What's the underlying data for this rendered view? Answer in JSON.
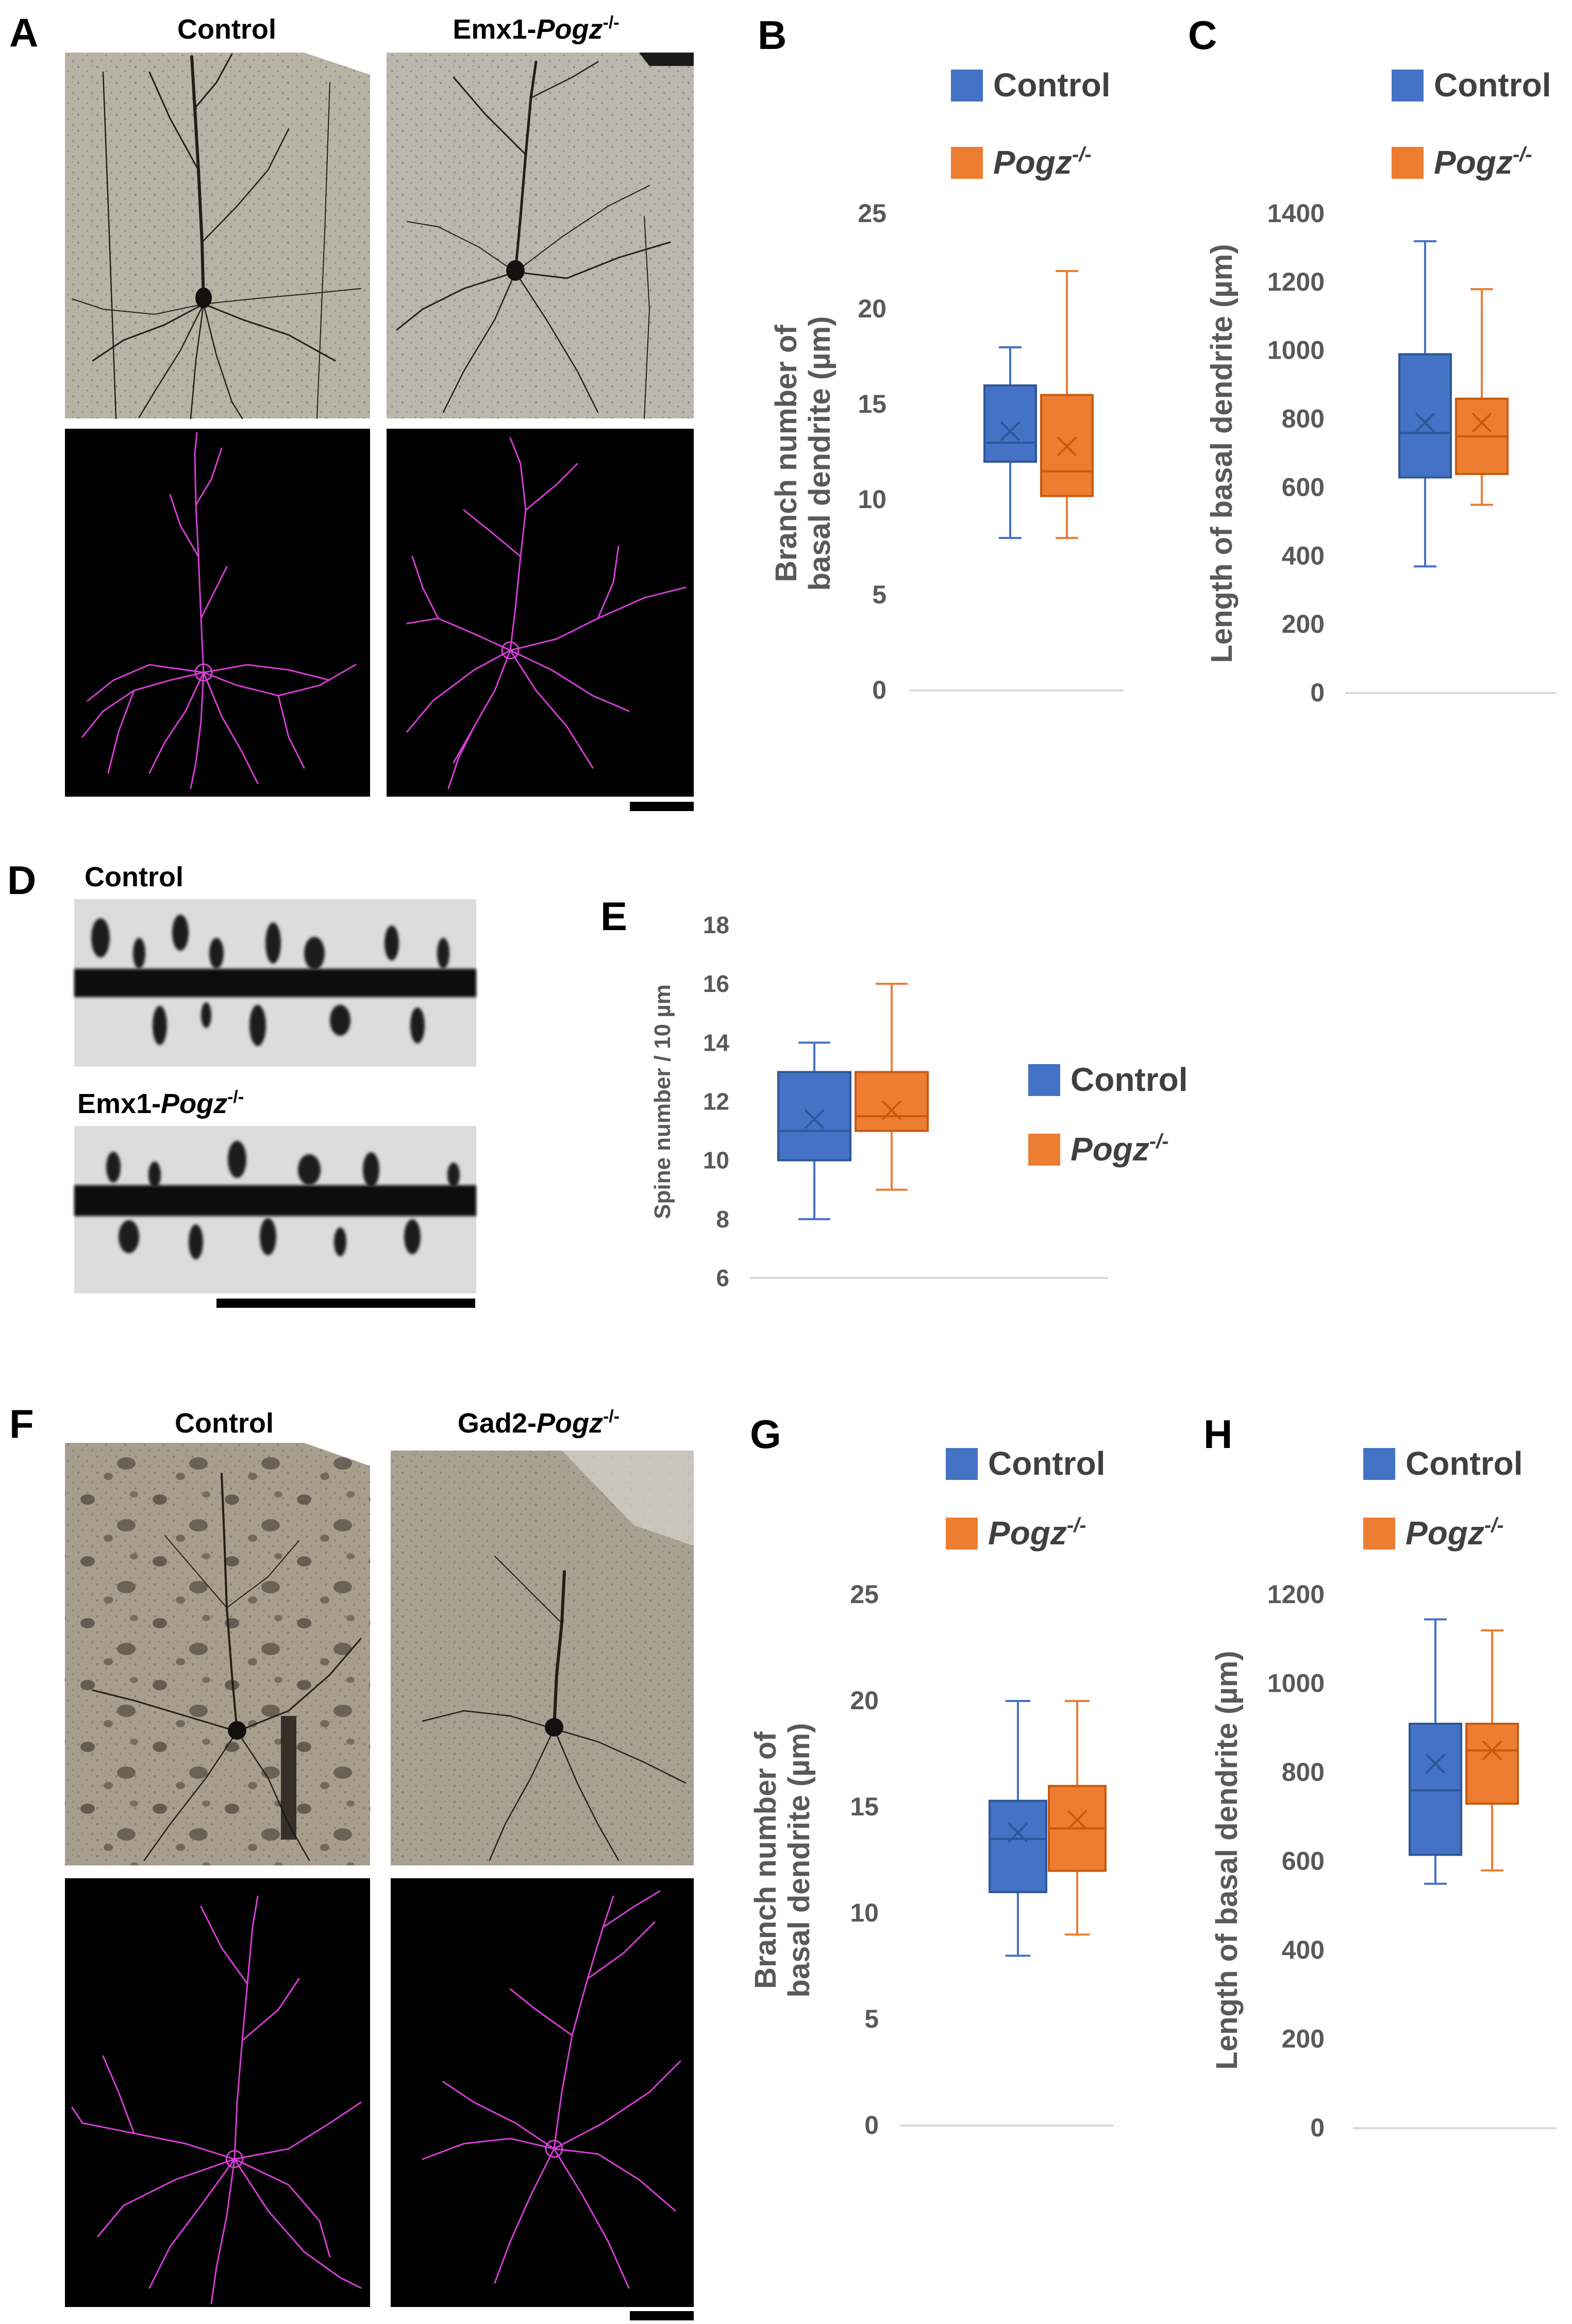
{
  "colors": {
    "control": "#4472C4",
    "control_dark": "#2F5597",
    "mutant": "#ED7D31",
    "mutant_dark": "#C55A11",
    "trace": "#D63ED6",
    "axis_text": "#595959",
    "axis_line": "#D9D9D9",
    "photo_bg": "#B8B2A6",
    "photo_bg_dark": "#A59C8C"
  },
  "panels": {
    "A": {
      "letter": "A",
      "left_label": "Control",
      "right_label_prefix": "Emx1-",
      "right_label_italic": "Pogz",
      "right_label_sup": "-/-"
    },
    "D": {
      "letter": "D",
      "top_label": "Control",
      "bottom_label_prefix": "Emx1-",
      "bottom_label_italic": "Pogz",
      "bottom_label_sup": "-/-"
    },
    "F": {
      "letter": "F",
      "left_label": "Control",
      "right_label_prefix": "Gad2-",
      "right_label_italic": "Pogz",
      "right_label_sup": "-/-"
    }
  },
  "legend": {
    "control": "Control",
    "mutant_italic": "Pogz",
    "mutant_sup": "-/-"
  },
  "chart_data": [
    {
      "id": "B",
      "type": "boxplot",
      "letter": "B",
      "ylabel_lines": [
        "Branch number of",
        "basal dendrite (µm)"
      ],
      "ylim": [
        0,
        25
      ],
      "yticks": [
        "0",
        "5",
        "10",
        "15",
        "20",
        "25"
      ],
      "legend_position": "top",
      "series": [
        {
          "name": "Control",
          "min": 8,
          "q1": 12,
          "median": 13,
          "q3": 16,
          "max": 18,
          "mean": 13.6
        },
        {
          "name": "Pogz-/-",
          "min": 8,
          "q1": 10.2,
          "median": 11.5,
          "q3": 15.5,
          "max": 22,
          "mean": 12.8
        }
      ]
    },
    {
      "id": "C",
      "type": "boxplot",
      "letter": "C",
      "ylabel_lines": [
        "Length of basal dendrite (µm)"
      ],
      "ylim": [
        0,
        1400
      ],
      "yticks": [
        "0",
        "200",
        "400",
        "600",
        "800",
        "1000",
        "1200",
        "1400"
      ],
      "legend_position": "top",
      "series": [
        {
          "name": "Control",
          "min": 370,
          "q1": 630,
          "median": 760,
          "q3": 990,
          "max": 1320,
          "mean": 790
        },
        {
          "name": "Pogz-/-",
          "min": 550,
          "q1": 640,
          "median": 750,
          "q3": 860,
          "max": 1180,
          "mean": 790
        }
      ]
    },
    {
      "id": "E",
      "type": "boxplot",
      "letter": "E",
      "ylabel_lines": [
        "Spine number / 10 µm"
      ],
      "ylim": [
        6,
        18
      ],
      "yticks": [
        "6",
        "8",
        "10",
        "12",
        "14",
        "16",
        "18"
      ],
      "legend_position": "right",
      "series": [
        {
          "name": "Control",
          "min": 8,
          "q1": 10,
          "median": 11,
          "q3": 13,
          "max": 14,
          "mean": 11.4
        },
        {
          "name": "Pogz-/-",
          "min": 9,
          "q1": 11,
          "median": 11.5,
          "q3": 13,
          "max": 16,
          "mean": 11.7
        }
      ]
    },
    {
      "id": "G",
      "type": "boxplot",
      "letter": "G",
      "ylabel_lines": [
        "Branch number of",
        "basal dendrite (µm)"
      ],
      "ylim": [
        0,
        25
      ],
      "yticks": [
        "0",
        "5",
        "10",
        "15",
        "20",
        "25"
      ],
      "legend_position": "top",
      "series": [
        {
          "name": "Control",
          "min": 8,
          "q1": 11,
          "median": 13.5,
          "q3": 15.3,
          "max": 20,
          "mean": 13.8
        },
        {
          "name": "Pogz-/-",
          "min": 9,
          "q1": 12,
          "median": 14,
          "q3": 16,
          "max": 20,
          "mean": 14.4
        }
      ]
    },
    {
      "id": "H",
      "type": "boxplot",
      "letter": "H",
      "ylabel_lines": [
        "Length of basal dendrite (µm)"
      ],
      "ylim": [
        0,
        1200
      ],
      "yticks": [
        "0",
        "200",
        "400",
        "600",
        "800",
        "1000",
        "1200"
      ],
      "legend_position": "top",
      "series": [
        {
          "name": "Control",
          "min": 550,
          "q1": 615,
          "median": 760,
          "q3": 910,
          "max": 1145,
          "mean": 820
        },
        {
          "name": "Pogz-/-",
          "min": 580,
          "q1": 730,
          "median": 850,
          "q3": 910,
          "max": 1120,
          "mean": 850
        }
      ]
    }
  ]
}
